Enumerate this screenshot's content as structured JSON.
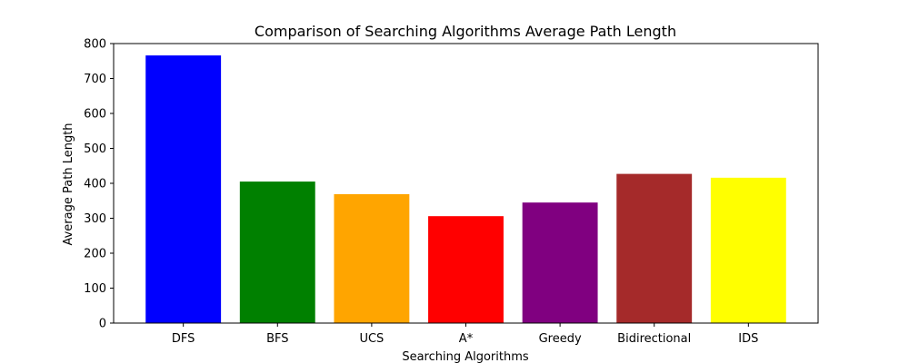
{
  "chart_data": {
    "type": "bar",
    "title": "Comparison of Searching Algorithms Average Path Length",
    "xlabel": "Searching Algorithms",
    "ylabel": "Average Path Length",
    "categories": [
      "DFS",
      "BFS",
      "UCS",
      "A*",
      "Greedy",
      "Bidirectional",
      "IDS"
    ],
    "values": [
      766,
      405,
      369,
      306,
      345,
      427,
      416
    ],
    "colors": [
      "#0000ff",
      "#008000",
      "#ffa500",
      "#ff0000",
      "#800080",
      "#a52a2a",
      "#ffff00"
    ],
    "ylim": [
      0,
      800
    ],
    "yticks": [
      0,
      100,
      200,
      300,
      400,
      500,
      600,
      700,
      800
    ],
    "grid": false,
    "legend": "none"
  }
}
